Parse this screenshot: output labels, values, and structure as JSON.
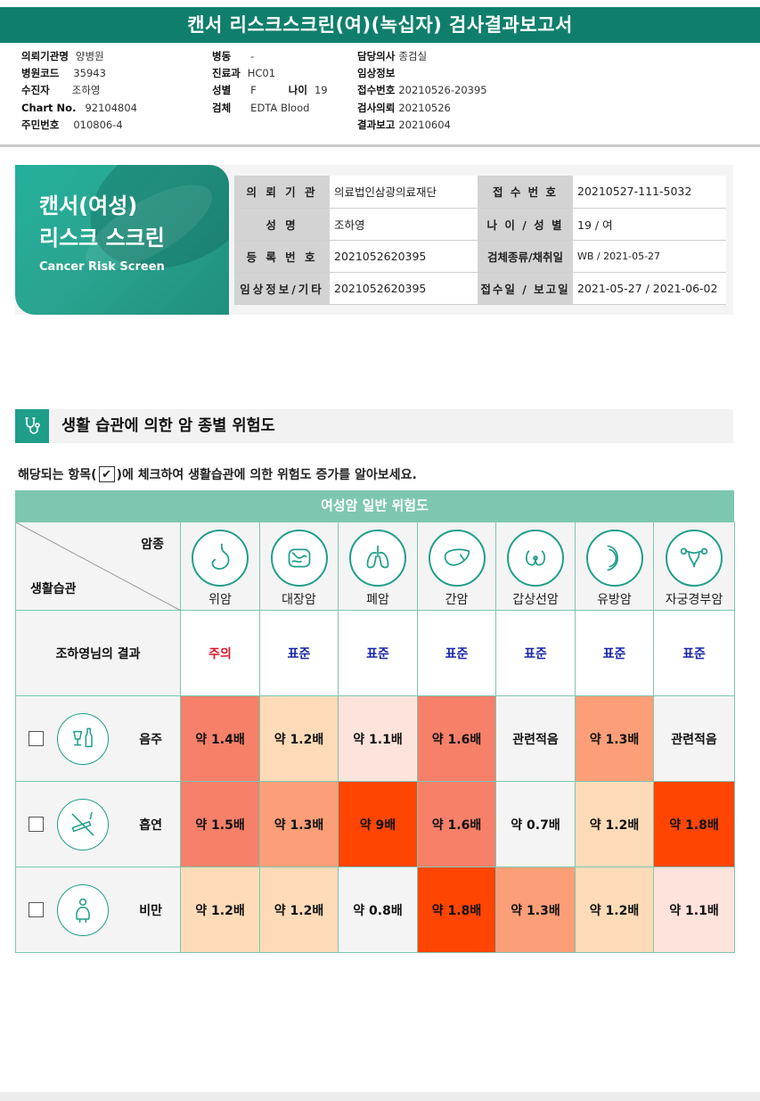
{
  "report_title": "캔서 리스크스크린(여)(녹십자) 검사결과보고서",
  "header": {
    "col1": [
      {
        "label": "의뢰기관명",
        "value": "양병원"
      },
      {
        "label": "병원코드",
        "value": "35943"
      },
      {
        "label": "수진자",
        "value": "조하영"
      },
      {
        "label": "Chart No.",
        "value": "92104804"
      },
      {
        "label": "주민번호",
        "value": "010806-4"
      }
    ],
    "col2": [
      {
        "label": "병동",
        "value": "-"
      },
      {
        "label": "진료과",
        "value": "HC01"
      },
      {
        "label": "성별",
        "value": "F"
      },
      {
        "label": "검체",
        "value": "EDTA Blood"
      }
    ],
    "age": {
      "label": "나이",
      "value": "19"
    },
    "col3": [
      {
        "label": "담당의사",
        "value": "종검실"
      },
      {
        "label": "임상정보",
        "value": ""
      },
      {
        "label": "접수번호",
        "value": "20210526-20395"
      },
      {
        "label": "검사의뢰",
        "value": "20210526"
      },
      {
        "label": "결과보고",
        "value": "20210604"
      }
    ]
  },
  "banner": {
    "line1": "캔서(여성)",
    "line2": "리스크 스크린",
    "line3": "Cancer Risk Screen"
  },
  "info_table": [
    {
      "k1": "의 뢰 기 관",
      "v1": "의료법인삼광의료재단",
      "k2": "접 수 번 호",
      "v2": "20210527-111-5032"
    },
    {
      "k1": "성          명",
      "v1": "조하영",
      "k2": "나 이 / 성 별",
      "v2": "19 / 여"
    },
    {
      "k1": "등 록 번 호",
      "v1": "2021052620395",
      "k2": "검체종류/채취일",
      "v2": "WB / 2021-05-27"
    },
    {
      "k1": "임상정보/기타",
      "v1": "2021052620395",
      "k2": "접수일 / 보고일",
      "v2": "2021-05-27 / 2021-06-02"
    }
  ],
  "section": {
    "title": "생활 습관에 의한 암 종별 위험도",
    "instruction_before": "해당되는 항목(",
    "instruction_check": "✔",
    "instruction_after": ")에 체크하여 생활습관에 의한 위험도 증가를 알아보세요."
  },
  "grid": {
    "header": "여성암 일반 위험도",
    "corner_top": "암종",
    "corner_bottom": "생활습관",
    "cancers": [
      {
        "name": "위암",
        "icon": "stomach-icon"
      },
      {
        "name": "대장암",
        "icon": "colon-icon"
      },
      {
        "name": "폐암",
        "icon": "lungs-icon"
      },
      {
        "name": "간암",
        "icon": "liver-icon"
      },
      {
        "name": "갑상선암",
        "icon": "thyroid-icon"
      },
      {
        "name": "유방암",
        "icon": "breast-icon"
      },
      {
        "name": "자궁경부암",
        "icon": "uterus-icon"
      }
    ],
    "result_label": "조하영님의 결과",
    "results": [
      "주의",
      "표준",
      "표준",
      "표준",
      "표준",
      "표준",
      "표준"
    ],
    "habits": [
      {
        "name": "음주",
        "icon": "alcohol-icon",
        "cells": [
          "약 1.4배",
          "약 1.2배",
          "약 1.1배",
          "약 1.6배",
          "관련적음",
          "약 1.3배",
          "관련적음"
        ]
      },
      {
        "name": "흡연",
        "icon": "smoking-icon",
        "cells": [
          "약 1.5배",
          "약 1.3배",
          "약 9배",
          "약 1.6배",
          "약 0.7배",
          "약 1.2배",
          "약 1.8배"
        ]
      },
      {
        "name": "비만",
        "icon": "obesity-icon",
        "cells": [
          "약 1.2배",
          "약 1.2배",
          "약 0.8배",
          "약 1.8배",
          "약 1.3배",
          "약 1.2배",
          "약 1.1배"
        ]
      }
    ],
    "cell_colors": [
      [
        "#f6806a",
        "#fddbb8",
        "#fee3dc",
        "#f6806a",
        "#f4f4f4",
        "#fc9f78",
        "#f4f4f4"
      ],
      [
        "#f6806a",
        "#fc9f78",
        "#fe4502",
        "#f6806a",
        "#f4f4f4",
        "#fddbb8",
        "#fe4502"
      ],
      [
        "#fddbb8",
        "#fddbb8",
        "#f4f4f4",
        "#fe4502",
        "#fc9f78",
        "#fddbb8",
        "#fee3dc"
      ]
    ]
  },
  "colors": {
    "brand": "#0f7f6c",
    "accent": "#1f9e8a",
    "grid_line": "#7dc7b0",
    "warn": "#e0152a",
    "normal": "#1a27a8"
  }
}
